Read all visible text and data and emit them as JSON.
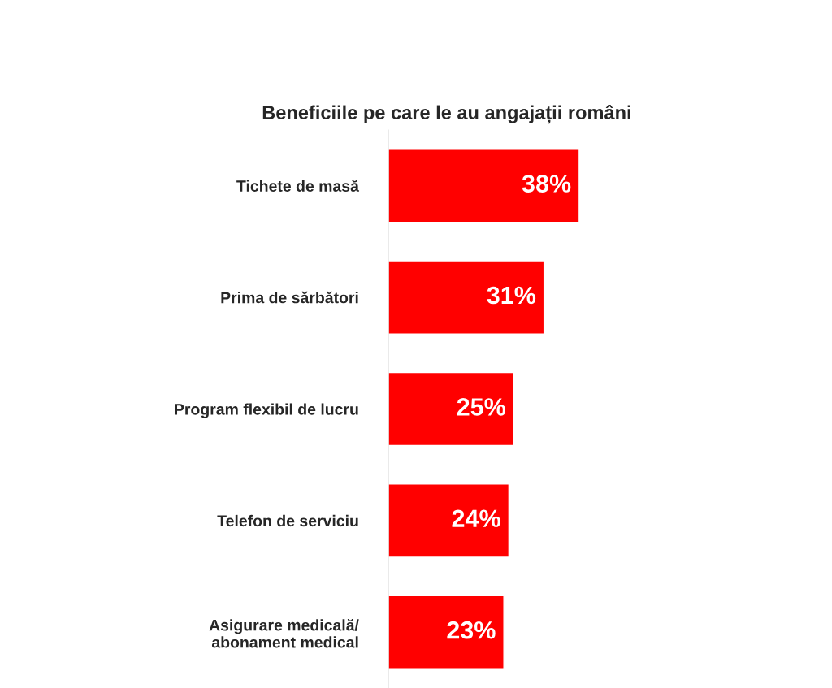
{
  "chart_data": {
    "type": "bar",
    "orientation": "horizontal",
    "title": "Beneficiile pe care le au angajații români",
    "categories": [
      "Tichete de masă",
      "Prima de sărbători",
      "Program flexibil de lucru",
      "Telefon de serviciu",
      "Asigurare medicală/\nabonament medical"
    ],
    "values": [
      38,
      31,
      25,
      24,
      23
    ],
    "color": "#ff0000",
    "value_labels": [
      "38%",
      "31%",
      "25%",
      "24%",
      "23%"
    ],
    "tick_labels": "y",
    "grid": false,
    "legend": false
  }
}
